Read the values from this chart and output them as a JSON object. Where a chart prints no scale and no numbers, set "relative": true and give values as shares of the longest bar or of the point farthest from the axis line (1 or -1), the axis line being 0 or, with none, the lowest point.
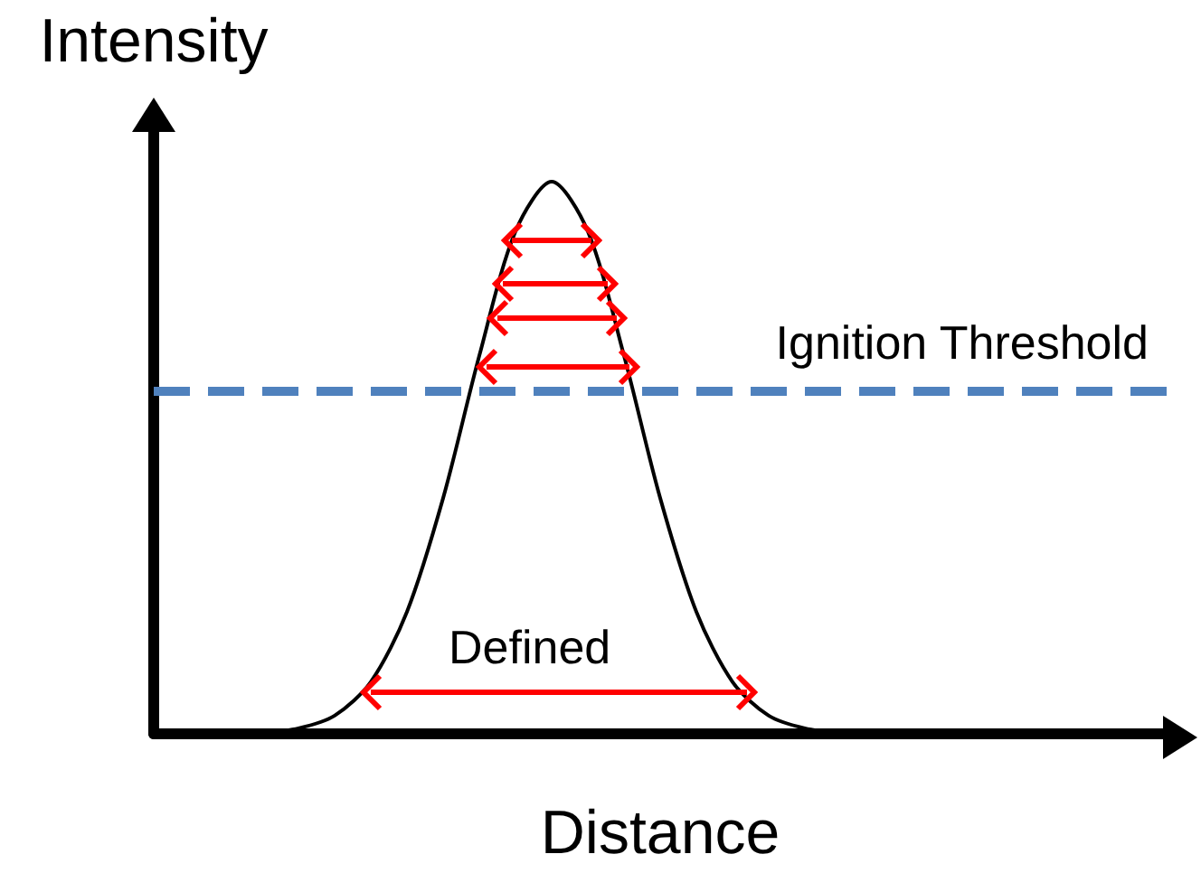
{
  "chart_data": {
    "type": "line",
    "relative": true,
    "xlabel": "Distance",
    "ylabel": "Intensity",
    "categories": [
      null,
      null,
      null,
      null,
      null,
      null,
      null,
      null,
      null,
      null,
      null,
      null,
      null,
      null,
      null,
      null,
      null,
      null,
      null,
      null,
      null,
      null,
      null,
      null,
      null,
      null,
      null,
      null,
      null
    ],
    "series": [
      {
        "color": "#000000",
        "values": [
          null,
          null,
          0,
          0.002,
          0.01,
          0.033,
          0.094,
          0.221,
          0.427,
          0.685,
          0.91,
          1,
          0.91,
          0.685,
          0.427,
          0.221,
          0.094,
          0.033,
          0.01,
          0.002,
          0,
          null,
          null,
          null,
          null,
          null,
          null,
          null,
          null
        ]
      }
    ],
    "ref_lines": [
      {
        "axis": "y",
        "value": 0.62,
        "label": "Ignition Threshold",
        "color": "#4f81bd",
        "line_style": "dashed"
      }
    ],
    "annotations": [
      "Defined"
    ],
    "grid": false,
    "marker": "none",
    "line_style": "solid"
  }
}
